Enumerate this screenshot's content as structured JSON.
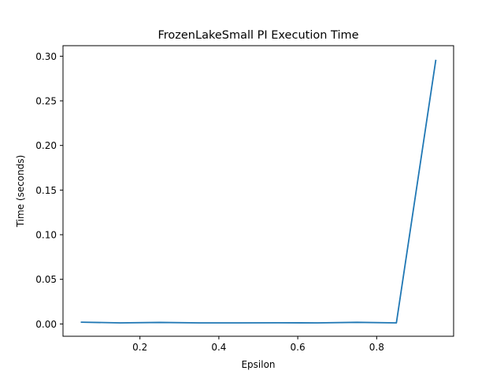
{
  "chart_data": {
    "type": "line",
    "title": "FrozenLakeSmall PI Execution Time",
    "xlabel": "Epsilon",
    "ylabel": "Time (seconds)",
    "xlim": [
      0.005,
      0.995
    ],
    "ylim": [
      -0.0138,
      0.3118
    ],
    "xticks": [
      0.2,
      0.4,
      0.6,
      0.8
    ],
    "yticks": [
      0.0,
      0.05,
      0.1,
      0.15,
      0.2,
      0.25,
      0.3
    ],
    "xtick_labels": [
      "0.2",
      "0.4",
      "0.6",
      "0.8"
    ],
    "ytick_labels": [
      "0.00",
      "0.05",
      "0.10",
      "0.15",
      "0.20",
      "0.25",
      "0.30"
    ],
    "grid": false,
    "series": [
      {
        "color": "#1f77b4",
        "x": [
          0.05,
          0.15,
          0.25,
          0.35,
          0.45,
          0.55,
          0.65,
          0.75,
          0.85,
          0.95
        ],
        "y": [
          0.002,
          0.0012,
          0.0017,
          0.0012,
          0.0012,
          0.0013,
          0.0012,
          0.0018,
          0.0012,
          0.296
        ]
      }
    ]
  }
}
